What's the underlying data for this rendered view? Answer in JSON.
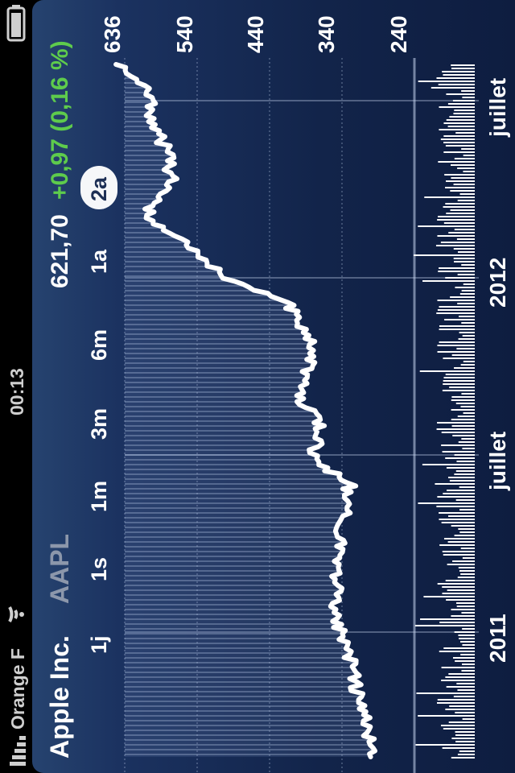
{
  "status_bar": {
    "carrier": "Orange F",
    "time": "00:13",
    "signal_icon": "signal-bars-icon",
    "wifi_icon": "wifi-icon",
    "battery_icon": "battery-icon"
  },
  "stock": {
    "name": "Apple Inc.",
    "ticker": "AAPL",
    "price": "621,70",
    "change": "+0,97 (0,16 %)",
    "change_color": "#5ecb4c"
  },
  "ranges": {
    "items": [
      "1j",
      "1s",
      "1m",
      "3m",
      "6m",
      "1a",
      "2a"
    ],
    "selected": "2a"
  },
  "chart_data": {
    "type": "line",
    "y_ticks": [
      "636",
      "540",
      "440",
      "340",
      "240"
    ],
    "ylim": [
      240,
      636
    ],
    "x_labels": [
      "2011",
      "juillet",
      "2012",
      "juillet"
    ],
    "x": [
      "2010-10",
      "2010-11",
      "2010-12",
      "2011-01",
      "2011-02",
      "2011-03",
      "2011-04",
      "2011-05",
      "2011-06",
      "2011-07",
      "2011-08",
      "2011-09",
      "2011-10",
      "2011-11",
      "2011-12",
      "2012-01",
      "2012-02",
      "2012-03",
      "2012-04",
      "2012-05",
      "2012-06",
      "2012-07",
      "2012-08",
      "2012-09"
    ],
    "values": [
      300,
      304,
      318,
      322,
      340,
      350,
      345,
      342,
      337,
      329,
      379,
      368,
      401,
      385,
      385,
      412,
      504,
      545,
      607,
      572,
      575,
      599,
      600,
      648
    ],
    "volume_series": "volume",
    "line_color": "#ffffff"
  }
}
